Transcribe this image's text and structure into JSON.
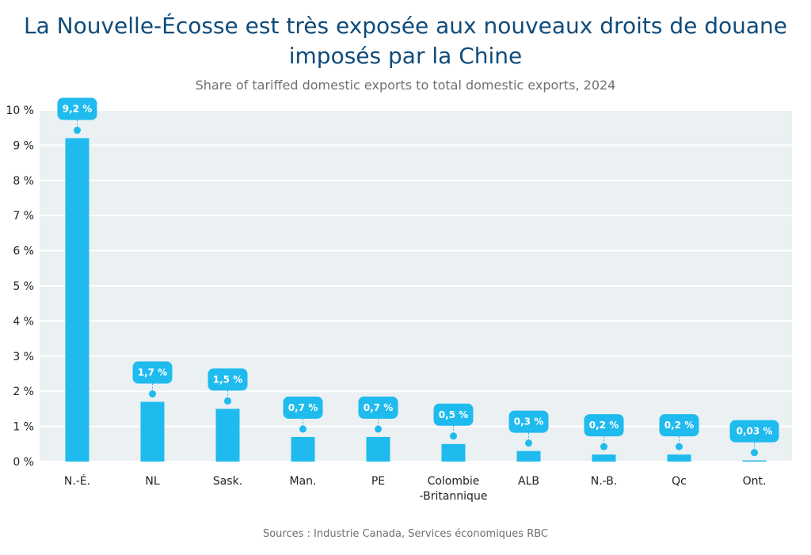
{
  "chart_data": {
    "type": "bar",
    "title": "La Nouvelle-Écosse est très exposée aux nouveaux droits de douane imposés par la Chine",
    "subtitle": "Share of tariffed domestic exports to total domestic exports, 2024",
    "source": "Sources : Industrie Canada, Services économiques RBC",
    "categories": [
      "N.-É.",
      "NL",
      "Sask.",
      "Man.",
      "PE",
      "Colombie-Britannique",
      "ALB",
      "N.-B.",
      "Qc",
      "Ont."
    ],
    "category_lines": [
      [
        "N.-É."
      ],
      [
        "NL"
      ],
      [
        "Sask."
      ],
      [
        "Man."
      ],
      [
        "PE"
      ],
      [
        "Colombie",
        "-Britannique"
      ],
      [
        "ALB"
      ],
      [
        "N.-B."
      ],
      [
        "Qc"
      ],
      [
        "Ont."
      ]
    ],
    "values": [
      9.2,
      1.7,
      1.5,
      0.7,
      0.7,
      0.5,
      0.3,
      0.2,
      0.2,
      0.03
    ],
    "data_labels": [
      "9,2 %",
      "1,7 %",
      "1,5 %",
      "0,7 %",
      "0,7 %",
      "0,5 %",
      "0,3 %",
      "0,2 %",
      "0,2 %",
      "0,03 %"
    ],
    "ylim": [
      0,
      10
    ],
    "yticks": [
      0,
      1,
      2,
      3,
      4,
      5,
      6,
      7,
      8,
      9,
      10
    ],
    "ytick_labels": [
      "0 %",
      "1 %",
      "2 %",
      "3 %",
      "4 %",
      "5 %",
      "6 %",
      "7 %",
      "8 %",
      "9 %",
      "10 %"
    ],
    "xlabel": "",
    "ylabel": "",
    "grid": true,
    "colors": {
      "bar": "#1fbbee",
      "plot_bg": "#ebf0f3",
      "grid": "#ffffff",
      "label_bg": "#1fbbee"
    }
  }
}
